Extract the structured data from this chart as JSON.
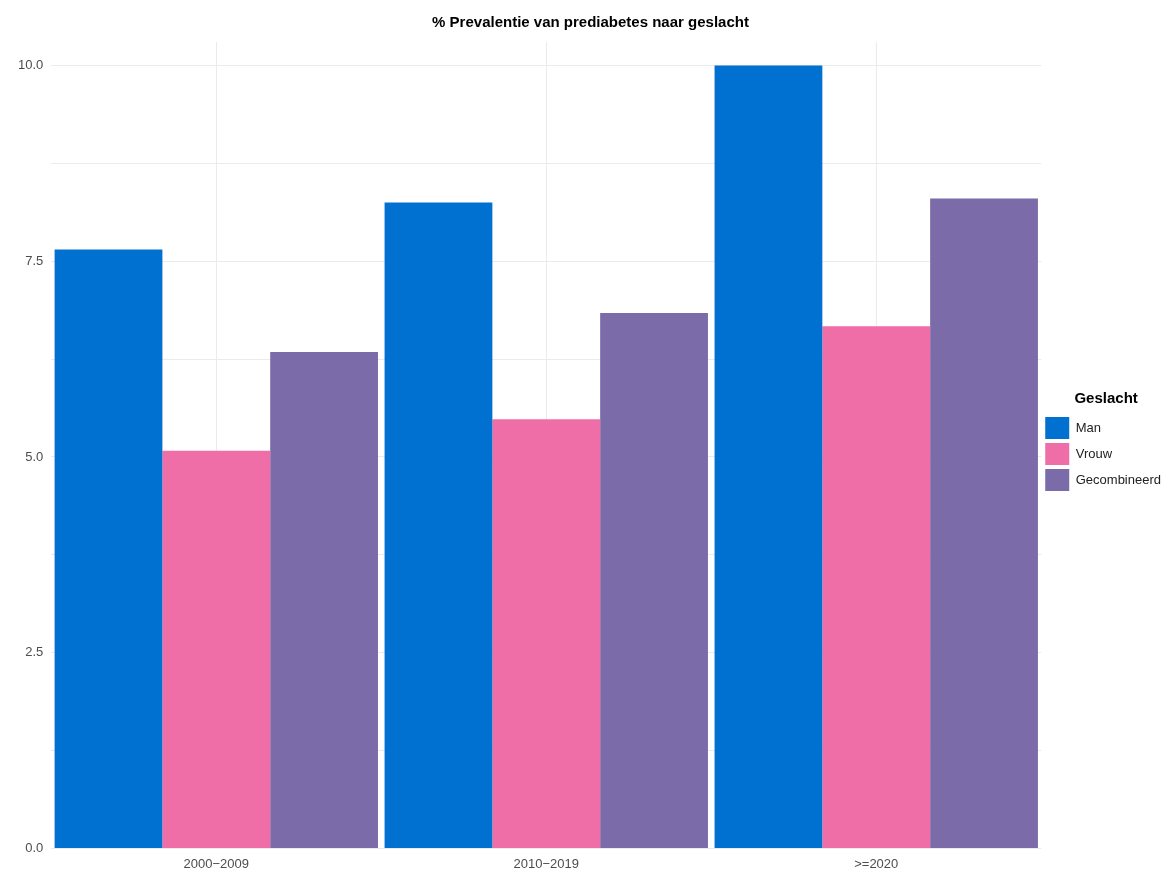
{
  "chart_data": {
    "type": "bar",
    "title": "% Prevalentie van prediabetes naar geslacht",
    "categories": [
      "2000−2009",
      "2010−2019",
      ">=2020"
    ],
    "series": [
      {
        "name": "Man",
        "color": "#0070d1",
        "values": [
          7.65,
          8.25,
          10.0
        ]
      },
      {
        "name": "Vrouw",
        "color": "#f06ea8",
        "values": [
          5.08,
          5.48,
          6.67
        ]
      },
      {
        "name": "Gecombineerd",
        "color": "#7b6ba8",
        "values": [
          6.34,
          6.84,
          8.3
        ]
      }
    ],
    "legend_title": "Geslacht",
    "legend": "right",
    "ylim": [
      0,
      10.3
    ],
    "yticks": [
      {
        "value": 0,
        "label": "0.0"
      },
      {
        "value": 1.25,
        "label": null
      },
      {
        "value": 2.5,
        "label": "2.5"
      },
      {
        "value": 3.75,
        "label": null
      },
      {
        "value": 5,
        "label": "5.0"
      },
      {
        "value": 6.25,
        "label": null
      },
      {
        "value": 7.5,
        "label": "7.5"
      },
      {
        "value": 8.75,
        "label": null
      },
      {
        "value": 10,
        "label": "10.0"
      }
    ],
    "grid": true
  }
}
